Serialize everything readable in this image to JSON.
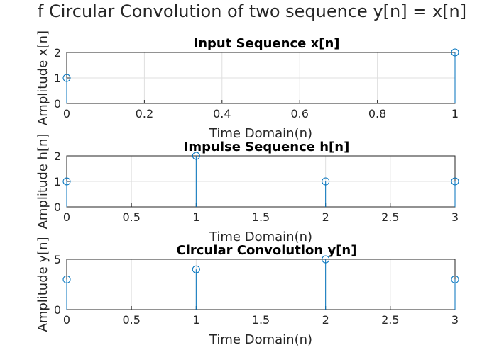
{
  "figure": {
    "title": "f Circular Convolution of two sequence y[n] = x[n]"
  },
  "chart_data": [
    {
      "type": "stem",
      "title": "Input Sequence x[n]",
      "xlabel": "Time Domain(n)",
      "ylabel": "Amplitude x[n]",
      "x": [
        0,
        1
      ],
      "values": [
        1,
        2
      ],
      "xlim": [
        0,
        1
      ],
      "ylim": [
        0,
        2
      ],
      "xticks": [
        "0",
        "0.2",
        "0.4",
        "0.6",
        "0.8",
        "1"
      ],
      "yticks": [
        "0",
        "1",
        "2"
      ],
      "grid": true,
      "color": "#0072BD"
    },
    {
      "type": "stem",
      "title": "Impulse Sequence h[n]",
      "xlabel": "Time Domain(n)",
      "ylabel": "Amplitude h[n]",
      "x": [
        0,
        1,
        2,
        3
      ],
      "values": [
        1,
        2,
        1,
        1
      ],
      "xlim": [
        0,
        3
      ],
      "ylim": [
        0,
        2
      ],
      "xticks": [
        "0",
        "0.5",
        "1",
        "1.5",
        "2",
        "2.5",
        "3"
      ],
      "yticks": [
        "0",
        "1",
        "2"
      ],
      "grid": true,
      "color": "#0072BD"
    },
    {
      "type": "stem",
      "title": "Circular Convolution y[n]",
      "xlabel": "Time Domain(n)",
      "ylabel": "Amplitude y[n]",
      "x": [
        0,
        1,
        2,
        3
      ],
      "values": [
        3,
        4,
        5,
        3
      ],
      "xlim": [
        0,
        3
      ],
      "ylim": [
        0,
        5
      ],
      "xticks": [
        "0",
        "0.5",
        "1",
        "1.5",
        "2",
        "2.5",
        "3"
      ],
      "yticks": [
        "0",
        "5"
      ],
      "grid": true,
      "color": "#0072BD"
    }
  ]
}
